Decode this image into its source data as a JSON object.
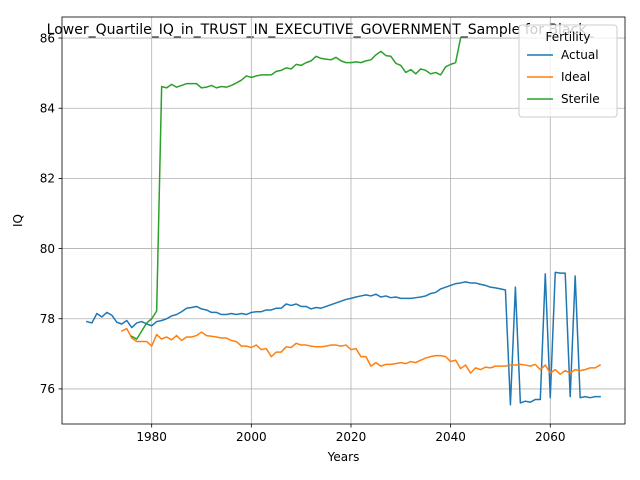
{
  "chart_data": {
    "type": "line",
    "title": "Lower_Quartile_IQ_in_TRUST_IN_EXECUTIVE_GOVERNMENT_Sample for Black_",
    "xlabel": "Years",
    "ylabel": "IQ",
    "xlim": [
      1962,
      2075
    ],
    "ylim": [
      75.0,
      86.6
    ],
    "xticks": [
      1980,
      2000,
      2020,
      2040,
      2060
    ],
    "yticks": [
      76,
      78,
      80,
      82,
      84,
      86
    ],
    "grid": true,
    "legend": {
      "title": "Fertility",
      "placement": "top-right"
    },
    "series": [
      {
        "name": "Actual",
        "color": "#1f77b4",
        "points": [
          [
            1967,
            77.92
          ],
          [
            1968,
            77.88
          ],
          [
            1969,
            78.15
          ],
          [
            1970,
            78.05
          ],
          [
            1971,
            78.18
          ],
          [
            1972,
            78.1
          ],
          [
            1973,
            77.9
          ],
          [
            1974,
            77.85
          ],
          [
            1975,
            77.95
          ],
          [
            1976,
            77.75
          ],
          [
            1977,
            77.88
          ],
          [
            1978,
            77.92
          ],
          [
            1979,
            77.85
          ],
          [
            1980,
            77.8
          ],
          [
            1981,
            77.92
          ],
          [
            1982,
            77.95
          ],
          [
            1983,
            78.0
          ],
          [
            1984,
            78.08
          ],
          [
            1985,
            78.12
          ],
          [
            1986,
            78.2
          ],
          [
            1987,
            78.3
          ],
          [
            1988,
            78.32
          ],
          [
            1989,
            78.35
          ],
          [
            1990,
            78.28
          ],
          [
            1991,
            78.25
          ],
          [
            1992,
            78.18
          ],
          [
            1993,
            78.18
          ],
          [
            1994,
            78.12
          ],
          [
            1995,
            78.12
          ],
          [
            1996,
            78.15
          ],
          [
            1997,
            78.12
          ],
          [
            1998,
            78.15
          ],
          [
            1999,
            78.12
          ],
          [
            2000,
            78.18
          ],
          [
            2001,
            78.2
          ],
          [
            2002,
            78.2
          ],
          [
            2003,
            78.25
          ],
          [
            2004,
            78.25
          ],
          [
            2005,
            78.3
          ],
          [
            2006,
            78.3
          ],
          [
            2007,
            78.42
          ],
          [
            2008,
            78.38
          ],
          [
            2009,
            78.42
          ],
          [
            2010,
            78.35
          ],
          [
            2011,
            78.35
          ],
          [
            2012,
            78.28
          ],
          [
            2013,
            78.32
          ],
          [
            2014,
            78.3
          ],
          [
            2015,
            78.35
          ],
          [
            2016,
            78.4
          ],
          [
            2017,
            78.45
          ],
          [
            2018,
            78.5
          ],
          [
            2019,
            78.55
          ],
          [
            2020,
            78.58
          ],
          [
            2021,
            78.62
          ],
          [
            2022,
            78.65
          ],
          [
            2023,
            78.68
          ],
          [
            2024,
            78.65
          ],
          [
            2025,
            78.7
          ],
          [
            2026,
            78.62
          ],
          [
            2027,
            78.65
          ],
          [
            2028,
            78.6
          ],
          [
            2029,
            78.62
          ],
          [
            2030,
            78.58
          ],
          [
            2031,
            78.58
          ],
          [
            2032,
            78.58
          ],
          [
            2033,
            78.6
          ],
          [
            2034,
            78.62
          ],
          [
            2035,
            78.65
          ],
          [
            2036,
            78.72
          ],
          [
            2037,
            78.75
          ],
          [
            2038,
            78.85
          ],
          [
            2039,
            78.9
          ],
          [
            2040,
            78.95
          ],
          [
            2041,
            79.0
          ],
          [
            2042,
            79.02
          ],
          [
            2043,
            79.05
          ],
          [
            2044,
            79.02
          ],
          [
            2045,
            79.02
          ],
          [
            2046,
            78.98
          ],
          [
            2047,
            78.95
          ],
          [
            2048,
            78.9
          ],
          [
            2049,
            78.88
          ],
          [
            2050,
            78.85
          ],
          [
            2051,
            78.82
          ],
          [
            2052,
            75.55
          ],
          [
            2053,
            78.9
          ],
          [
            2054,
            75.6
          ],
          [
            2055,
            75.65
          ],
          [
            2056,
            75.62
          ],
          [
            2057,
            75.7
          ],
          [
            2058,
            75.7
          ],
          [
            2059,
            79.28
          ],
          [
            2060,
            75.75
          ],
          [
            2061,
            79.32
          ],
          [
            2062,
            79.3
          ],
          [
            2063,
            79.3
          ],
          [
            2064,
            75.78
          ],
          [
            2065,
            79.22
          ],
          [
            2066,
            75.75
          ],
          [
            2067,
            75.78
          ],
          [
            2068,
            75.75
          ],
          [
            2069,
            75.78
          ],
          [
            2070,
            75.78
          ]
        ]
      },
      {
        "name": "Ideal",
        "color": "#ff7f0e",
        "points": [
          [
            1974,
            77.65
          ],
          [
            1975,
            77.72
          ],
          [
            1976,
            77.45
          ],
          [
            1977,
            77.35
          ],
          [
            1978,
            77.35
          ],
          [
            1979,
            77.35
          ],
          [
            1980,
            77.22
          ],
          [
            1981,
            77.55
          ],
          [
            1982,
            77.42
          ],
          [
            1983,
            77.48
          ],
          [
            1984,
            77.4
          ],
          [
            1985,
            77.52
          ],
          [
            1986,
            77.38
          ],
          [
            1987,
            77.48
          ],
          [
            1988,
            77.48
          ],
          [
            1989,
            77.52
          ],
          [
            1990,
            77.62
          ],
          [
            1991,
            77.52
          ],
          [
            1992,
            77.5
          ],
          [
            1993,
            77.48
          ],
          [
            1994,
            77.45
          ],
          [
            1995,
            77.45
          ],
          [
            1996,
            77.38
          ],
          [
            1997,
            77.35
          ],
          [
            1998,
            77.22
          ],
          [
            1999,
            77.22
          ],
          [
            2000,
            77.18
          ],
          [
            2001,
            77.25
          ],
          [
            2002,
            77.12
          ],
          [
            2003,
            77.15
          ],
          [
            2004,
            76.92
          ],
          [
            2005,
            77.05
          ],
          [
            2006,
            77.05
          ],
          [
            2007,
            77.2
          ],
          [
            2008,
            77.18
          ],
          [
            2009,
            77.3
          ],
          [
            2010,
            77.25
          ],
          [
            2011,
            77.25
          ],
          [
            2012,
            77.22
          ],
          [
            2013,
            77.2
          ],
          [
            2014,
            77.2
          ],
          [
            2015,
            77.22
          ],
          [
            2016,
            77.25
          ],
          [
            2017,
            77.25
          ],
          [
            2018,
            77.22
          ],
          [
            2019,
            77.25
          ],
          [
            2020,
            77.12
          ],
          [
            2021,
            77.15
          ],
          [
            2022,
            76.92
          ],
          [
            2023,
            76.92
          ],
          [
            2024,
            76.65
          ],
          [
            2025,
            76.75
          ],
          [
            2026,
            76.65
          ],
          [
            2027,
            76.7
          ],
          [
            2028,
            76.7
          ],
          [
            2029,
            76.72
          ],
          [
            2030,
            76.75
          ],
          [
            2031,
            76.72
          ],
          [
            2032,
            76.78
          ],
          [
            2033,
            76.75
          ],
          [
            2034,
            76.82
          ],
          [
            2035,
            76.88
          ],
          [
            2036,
            76.92
          ],
          [
            2037,
            76.95
          ],
          [
            2038,
            76.95
          ],
          [
            2039,
            76.92
          ],
          [
            2040,
            76.78
          ],
          [
            2041,
            76.82
          ],
          [
            2042,
            76.58
          ],
          [
            2043,
            76.68
          ],
          [
            2044,
            76.45
          ],
          [
            2045,
            76.6
          ],
          [
            2046,
            76.55
          ],
          [
            2047,
            76.62
          ],
          [
            2048,
            76.6
          ],
          [
            2049,
            76.65
          ],
          [
            2050,
            76.65
          ],
          [
            2051,
            76.65
          ],
          [
            2052,
            76.68
          ],
          [
            2053,
            76.68
          ],
          [
            2054,
            76.7
          ],
          [
            2055,
            76.68
          ],
          [
            2056,
            76.65
          ],
          [
            2057,
            76.7
          ],
          [
            2058,
            76.55
          ],
          [
            2059,
            76.68
          ],
          [
            2060,
            76.45
          ],
          [
            2061,
            76.55
          ],
          [
            2062,
            76.42
          ],
          [
            2063,
            76.52
          ],
          [
            2064,
            76.45
          ],
          [
            2065,
            76.55
          ],
          [
            2066,
            76.52
          ],
          [
            2067,
            76.55
          ],
          [
            2068,
            76.6
          ],
          [
            2069,
            76.6
          ],
          [
            2070,
            76.68
          ]
        ]
      },
      {
        "name": "Sterile",
        "color": "#2ca02c",
        "points": [
          [
            1976,
            77.5
          ],
          [
            1977,
            77.42
          ],
          [
            1978,
            77.65
          ],
          [
            1979,
            77.88
          ],
          [
            1980,
            78.0
          ],
          [
            1981,
            78.22
          ],
          [
            1982,
            84.62
          ],
          [
            1983,
            84.58
          ],
          [
            1984,
            84.68
          ],
          [
            1985,
            84.6
          ],
          [
            1986,
            84.65
          ],
          [
            1987,
            84.7
          ],
          [
            1988,
            84.7
          ],
          [
            1989,
            84.7
          ],
          [
            1990,
            84.58
          ],
          [
            1991,
            84.6
          ],
          [
            1992,
            84.65
          ],
          [
            1993,
            84.58
          ],
          [
            1994,
            84.62
          ],
          [
            1995,
            84.6
          ],
          [
            1996,
            84.65
          ],
          [
            1997,
            84.72
          ],
          [
            1998,
            84.8
          ],
          [
            1999,
            84.92
          ],
          [
            2000,
            84.88
          ],
          [
            2001,
            84.92
          ],
          [
            2002,
            84.95
          ],
          [
            2003,
            84.95
          ],
          [
            2004,
            84.95
          ],
          [
            2005,
            85.05
          ],
          [
            2006,
            85.08
          ],
          [
            2007,
            85.15
          ],
          [
            2008,
            85.12
          ],
          [
            2009,
            85.25
          ],
          [
            2010,
            85.22
          ],
          [
            2011,
            85.3
          ],
          [
            2012,
            85.35
          ],
          [
            2013,
            85.48
          ],
          [
            2014,
            85.42
          ],
          [
            2015,
            85.4
          ],
          [
            2016,
            85.38
          ],
          [
            2017,
            85.45
          ],
          [
            2018,
            85.35
          ],
          [
            2019,
            85.3
          ],
          [
            2020,
            85.3
          ],
          [
            2021,
            85.32
          ],
          [
            2022,
            85.3
          ],
          [
            2023,
            85.35
          ],
          [
            2024,
            85.38
          ],
          [
            2025,
            85.52
          ],
          [
            2026,
            85.62
          ],
          [
            2027,
            85.5
          ],
          [
            2028,
            85.48
          ],
          [
            2029,
            85.28
          ],
          [
            2030,
            85.22
          ],
          [
            2031,
            85.02
          ],
          [
            2032,
            85.1
          ],
          [
            2033,
            84.98
          ],
          [
            2034,
            85.12
          ],
          [
            2035,
            85.08
          ],
          [
            2036,
            84.98
          ],
          [
            2037,
            85.02
          ],
          [
            2038,
            84.95
          ],
          [
            2039,
            85.18
          ],
          [
            2040,
            85.25
          ],
          [
            2041,
            85.3
          ],
          [
            2042,
            86.0
          ]
        ]
      }
    ]
  }
}
